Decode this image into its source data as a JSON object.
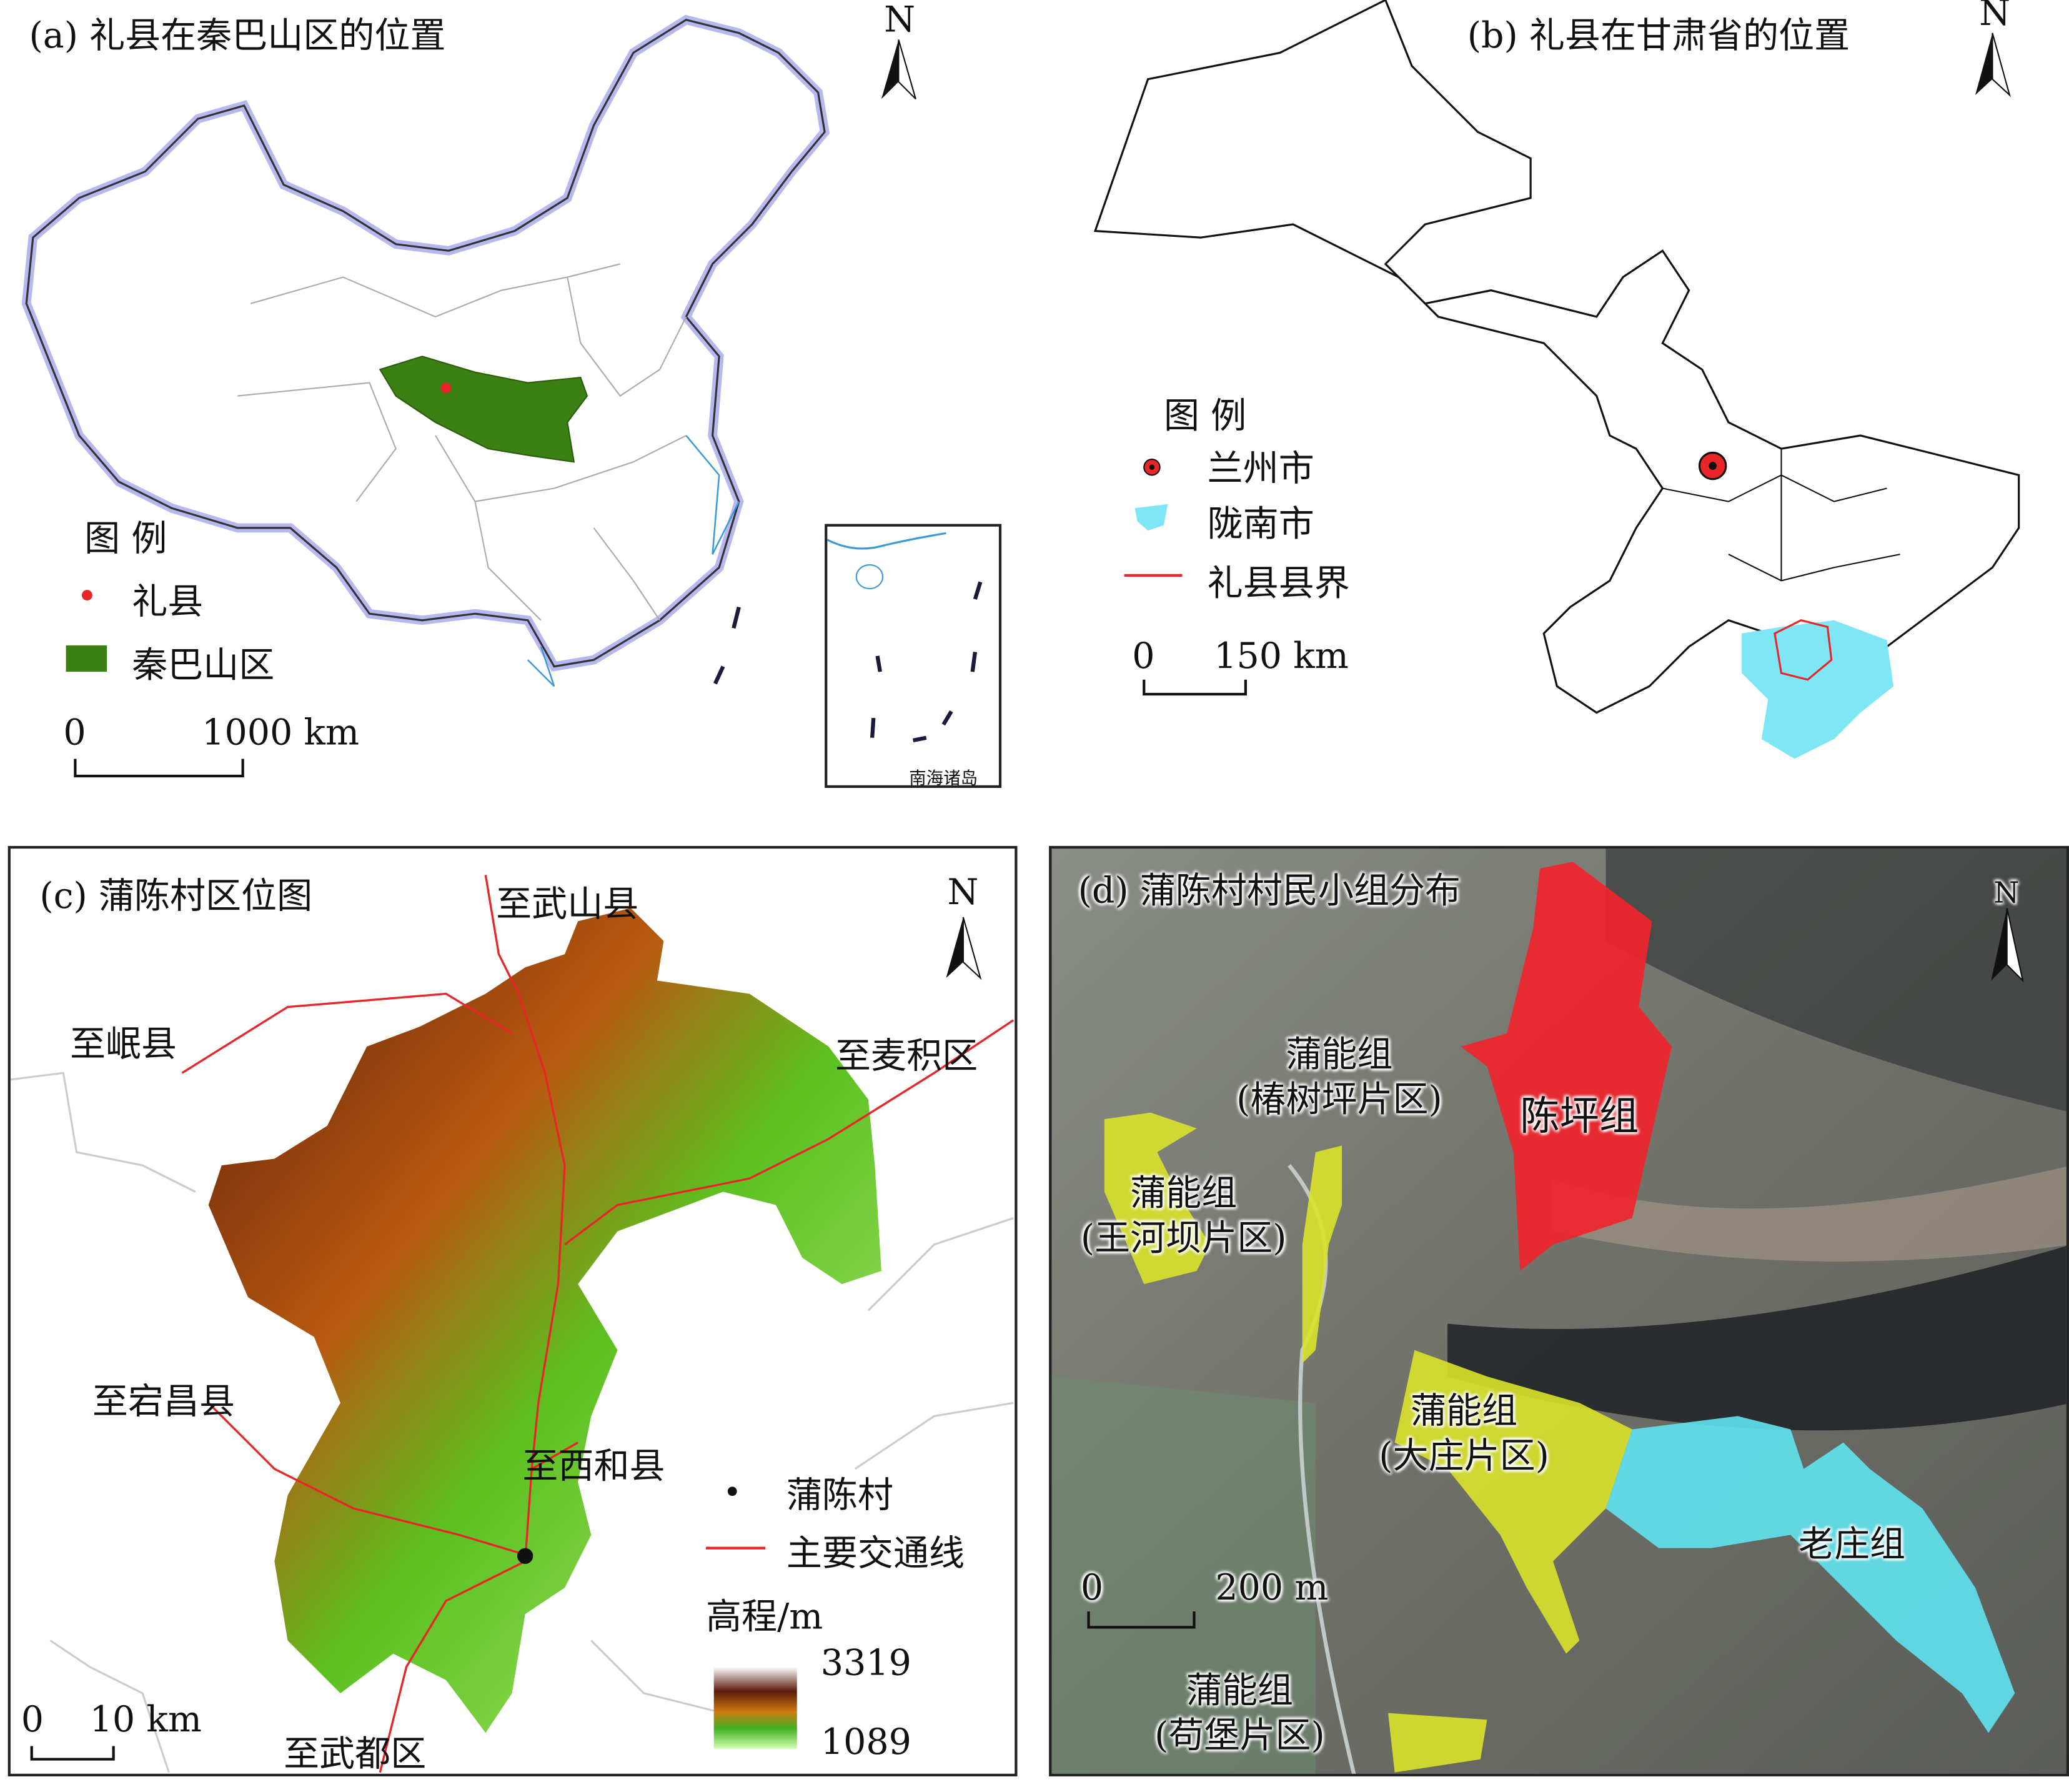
{
  "panel_a": {
    "title": "(a) 礼县在秦巴山区的位置",
    "legend_title": "图 例",
    "legend": [
      {
        "label": "礼县",
        "color": "#e8262a",
        "symbol": "dot"
      },
      {
        "label": "秦巴山区",
        "color": "#2e7d12",
        "symbol": "rect"
      }
    ],
    "scale_zero": "0",
    "scale_label": "1000 km",
    "inset_label": "南海诸岛",
    "north": "N"
  },
  "panel_b": {
    "title": "(b) 礼县在甘肃省的位置",
    "legend_title": "图 例",
    "legend": [
      {
        "label": "兰州市",
        "color": "#e8262a",
        "symbol": "target"
      },
      {
        "label": "陇南市",
        "color": "#7fe6f5",
        "symbol": "patch"
      },
      {
        "label": "礼县县界",
        "color": "#e8262a",
        "symbol": "line"
      }
    ],
    "scale_zero": "0",
    "scale_label": "150 km",
    "north": "N"
  },
  "panel_c": {
    "title": "(c) 蒲陈村区位图",
    "directions": [
      "至武山县",
      "至岷县",
      "至麦积区",
      "至宕昌县",
      "至西和县",
      "至武都区"
    ],
    "legend": [
      {
        "label": "蒲陈村",
        "symbol": "dot",
        "color": "#000000"
      },
      {
        "label": "主要交通线",
        "symbol": "line",
        "color": "#e8262a"
      }
    ],
    "elevation_title": "高程/m",
    "elevation_max": "3319",
    "elevation_min": "1089",
    "scale_zero": "0",
    "scale_label": "10 km",
    "north": "N"
  },
  "panel_d": {
    "title": "(d) 蒲陈村村民小组分布",
    "groups": [
      {
        "label": "陈坪组",
        "color": "#f0242c"
      },
      {
        "label": "蒲能组\n(椿树坪片区)",
        "color": "#d9e22a"
      },
      {
        "label": "蒲能组\n(王河坝片区)",
        "color": "#d9e22a"
      },
      {
        "label": "蒲能组\n(大庄片区)",
        "color": "#d9e22a"
      },
      {
        "label": "蒲能组\n(苟堡片区)",
        "color": "#d9e22a"
      },
      {
        "label": "老庄组",
        "color": "#5fe3ef"
      }
    ],
    "scale_zero": "0",
    "scale_label": "200 m",
    "north": "N"
  }
}
